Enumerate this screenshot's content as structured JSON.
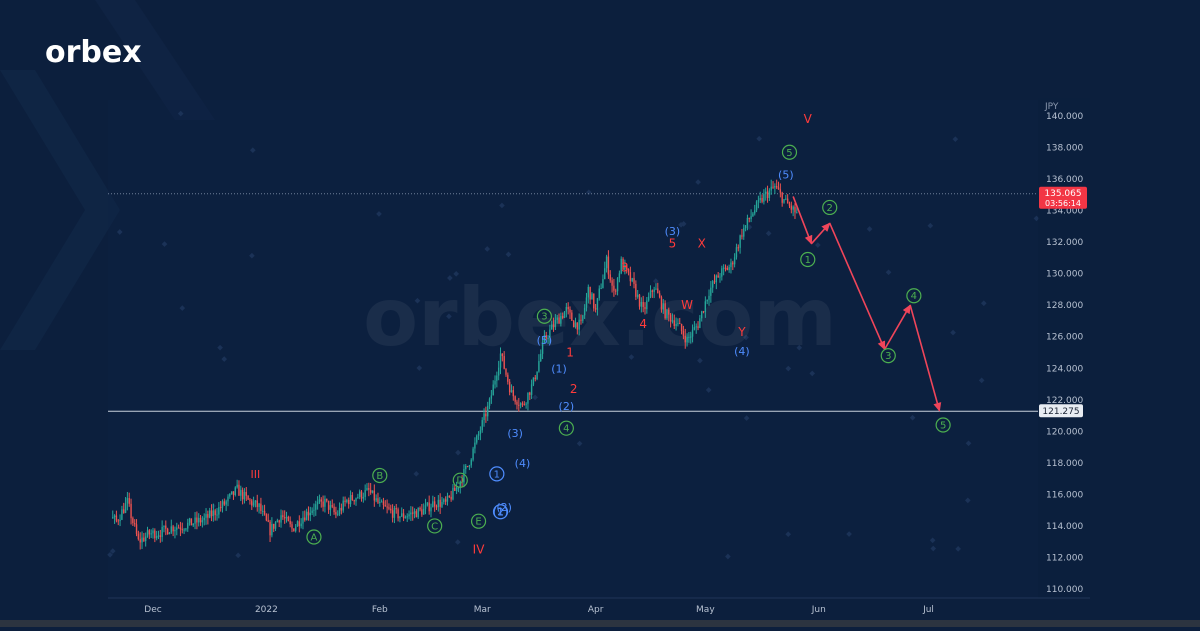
{
  "brand": {
    "logo": "orbex",
    "watermark": "orbex.com"
  },
  "colors": {
    "background": "#0c1f3d",
    "up": "#26a69a",
    "down": "#ef5350",
    "red_label": "#ff3b3b",
    "blue_label": "#4f8dff",
    "green_label": "#4caf50",
    "arrow": "#f0455a",
    "price_badge": "#f23645"
  },
  "chart_data": {
    "type": "line",
    "title": "",
    "currency": "JPY",
    "ylim": [
      110,
      140
    ],
    "y_ticks": [
      "110.000",
      "112.000",
      "114.000",
      "116.000",
      "118.000",
      "120.000",
      "122.000",
      "124.000",
      "126.000",
      "128.000",
      "130.000",
      "132.000",
      "134.000",
      "136.000",
      "138.000",
      "140.000"
    ],
    "x_ticks": [
      {
        "label": "Dec",
        "x": 10
      },
      {
        "label": "2022",
        "x": 41
      },
      {
        "label": "Feb",
        "x": 72
      },
      {
        "label": "Mar",
        "x": 100
      },
      {
        "label": "Apr",
        "x": 131
      },
      {
        "label": "May",
        "x": 161
      },
      {
        "label": "Jun",
        "x": 192
      },
      {
        "label": "Jul",
        "x": 222
      }
    ],
    "price_series": {
      "x": [
        -3,
        0,
        3,
        6,
        9,
        12,
        15,
        18,
        21,
        24,
        27,
        30,
        33,
        36,
        39,
        42,
        45,
        48,
        51,
        54,
        57,
        60,
        63,
        66,
        69,
        72,
        75,
        78,
        81,
        84,
        87,
        90,
        93,
        96,
        99,
        102,
        105,
        108,
        111,
        114,
        117,
        120,
        123,
        125,
        127,
        129,
        130,
        131,
        132,
        134,
        136,
        138,
        141,
        144,
        147,
        150,
        153,
        156,
        159,
        162,
        165,
        168,
        171,
        174,
        177,
        180,
        183,
        186,
        189,
        192,
        195,
        198
      ],
      "y": [
        114.8,
        114.3,
        115.5,
        113.0,
        113.5,
        113.6,
        113.9,
        114.0,
        114.2,
        114.4,
        114.9,
        115.5,
        116.3,
        115.6,
        115.2,
        113.7,
        114.7,
        113.8,
        114.6,
        115.2,
        115.5,
        114.7,
        115.6,
        115.9,
        116.2,
        115.3,
        114.9,
        114.6,
        114.8,
        115.0,
        115.5,
        115.4,
        116.4,
        117.8,
        119.8,
        121.8,
        124.9,
        122.4,
        121.6,
        123.1,
        125.8,
        126.9,
        127.7,
        126.9,
        126.7,
        129.0,
        128.4,
        127.6,
        128.8,
        130.8,
        128.7,
        130.7,
        129.4,
        127.6,
        129.2,
        127.5,
        126.9,
        125.8,
        126.8,
        128.9,
        130.0,
        130.5,
        132.6,
        133.9,
        134.9,
        135.5,
        134.5,
        133.8,
        133.0,
        132.5,
        132.0,
        131.5
      ]
    },
    "horizontal_levels": [
      {
        "value": 135.065,
        "label": "135.065",
        "sublabel": "03:56:14"
      },
      {
        "value": 121.275,
        "label": "121.275"
      }
    ],
    "wave_labels": [
      {
        "text": "III",
        "x": 38,
        "y": 117.3,
        "style": "red"
      },
      {
        "text": "IV",
        "x": 99,
        "y": 112.5,
        "style": "red"
      },
      {
        "text": "V",
        "x": 189,
        "y": 139.8,
        "style": "red"
      },
      {
        "text": "A",
        "x": 54,
        "y": 113.3,
        "style": "green-circle"
      },
      {
        "text": "B",
        "x": 72,
        "y": 117.2,
        "style": "green-circle"
      },
      {
        "text": "C",
        "x": 87,
        "y": 114.0,
        "style": "green-circle"
      },
      {
        "text": "D",
        "x": 94,
        "y": 116.9,
        "style": "green-circle"
      },
      {
        "text": "E",
        "x": 99,
        "y": 114.3,
        "style": "green-circle"
      },
      {
        "text": "1",
        "x": 104,
        "y": 117.3,
        "style": "blue-circle"
      },
      {
        "text": "2",
        "x": 105,
        "y": 114.9,
        "style": "blue-circle"
      },
      {
        "text": "(1)",
        "x": 105,
        "y": 114.9,
        "style": "blue"
      },
      {
        "text": "(2)",
        "x": 106,
        "y": 115.2,
        "style": "blue"
      },
      {
        "text": "(3)",
        "x": 109,
        "y": 119.9,
        "style": "blue"
      },
      {
        "text": "(4)",
        "x": 111,
        "y": 118.0,
        "style": "blue"
      },
      {
        "text": "(5)",
        "x": 117,
        "y": 125.8,
        "style": "blue"
      },
      {
        "text": "3",
        "x": 117,
        "y": 127.3,
        "style": "green-circle"
      },
      {
        "text": "(1)",
        "x": 121,
        "y": 124.0,
        "style": "blue"
      },
      {
        "text": "(2)",
        "x": 123,
        "y": 121.6,
        "style": "blue"
      },
      {
        "text": "4",
        "x": 123,
        "y": 120.2,
        "style": "green-circle"
      },
      {
        "text": "1",
        "x": 124,
        "y": 125.0,
        "style": "red"
      },
      {
        "text": "2",
        "x": 125,
        "y": 122.7,
        "style": "red"
      },
      {
        "text": "3",
        "x": 139,
        "y": 130.4,
        "style": "red"
      },
      {
        "text": "4",
        "x": 144,
        "y": 126.8,
        "style": "red"
      },
      {
        "text": "(3)",
        "x": 152,
        "y": 132.7,
        "style": "blue"
      },
      {
        "text": "5",
        "x": 152,
        "y": 131.9,
        "style": "red"
      },
      {
        "text": "X",
        "x": 160,
        "y": 131.9,
        "style": "red"
      },
      {
        "text": "W",
        "x": 156,
        "y": 128.0,
        "style": "red"
      },
      {
        "text": "Y",
        "x": 171,
        "y": 126.3,
        "style": "red"
      },
      {
        "text": "(4)",
        "x": 171,
        "y": 125.1,
        "style": "blue"
      },
      {
        "text": "(5)",
        "x": 183,
        "y": 136.3,
        "style": "blue"
      },
      {
        "text": "5",
        "x": 184,
        "y": 137.7,
        "style": "green-circle"
      },
      {
        "text": "1",
        "x": 189,
        "y": 130.9,
        "style": "green-circle"
      },
      {
        "text": "2",
        "x": 195,
        "y": 134.2,
        "style": "green-circle"
      },
      {
        "text": "3",
        "x": 211,
        "y": 124.8,
        "style": "green-circle"
      },
      {
        "text": "4",
        "x": 218,
        "y": 128.6,
        "style": "green-circle"
      },
      {
        "text": "5",
        "x": 226,
        "y": 120.4,
        "style": "green-circle"
      }
    ],
    "forecast_path": [
      {
        "x": 185,
        "y": 134.9
      },
      {
        "x": 190,
        "y": 131.9
      },
      {
        "x": 195,
        "y": 133.2
      },
      {
        "x": 210,
        "y": 125.2
      },
      {
        "x": 217,
        "y": 128.0
      },
      {
        "x": 225,
        "y": 121.3
      }
    ]
  }
}
